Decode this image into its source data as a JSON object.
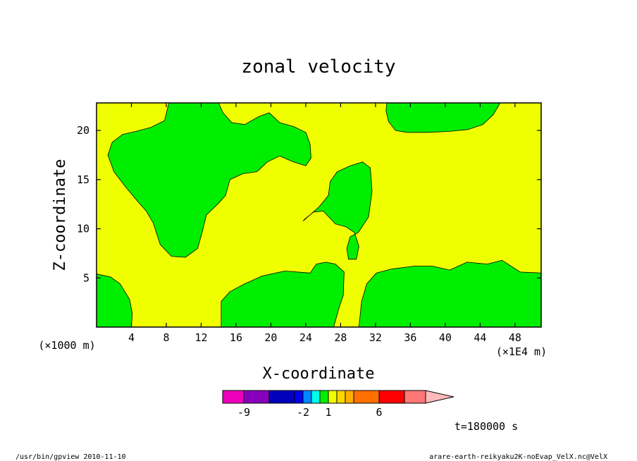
{
  "chart_data": {
    "type": "contour",
    "title": "zonal velocity",
    "xlabel": "X-coordinate",
    "ylabel": "Z-coordinate",
    "x_units_note": "(×1E4 m)",
    "y_units_note": "(×1000 m)",
    "x_ticks": [
      4,
      8,
      12,
      16,
      20,
      24,
      28,
      32,
      36,
      40,
      44,
      48
    ],
    "y_ticks": [
      5,
      10,
      15,
      20
    ],
    "xlim": [
      0,
      51
    ],
    "ylim": [
      0,
      22.8
    ],
    "background_level_color": "#f0ff00",
    "region_color": "#00ee00",
    "regions": [
      {
        "name": "upper-left",
        "points": [
          [
            1.3,
            17.5
          ],
          [
            1.8,
            18.8
          ],
          [
            3,
            19.6
          ],
          [
            4.5,
            19.9
          ],
          [
            6.2,
            20.3
          ],
          [
            7.8,
            21
          ],
          [
            8.3,
            22.8
          ],
          [
            14.0,
            22.8
          ],
          [
            14.5,
            21.8
          ],
          [
            15.5,
            20.8
          ],
          [
            17,
            20.6
          ],
          [
            18.6,
            21.4
          ],
          [
            19.8,
            21.8
          ],
          [
            21,
            20.8
          ],
          [
            22.6,
            20.4
          ],
          [
            24,
            19.8
          ],
          [
            24.5,
            18.6
          ],
          [
            24.6,
            17.2
          ],
          [
            24,
            16.4
          ],
          [
            22.6,
            16.8
          ],
          [
            21,
            17.4
          ],
          [
            19.6,
            16.8
          ],
          [
            18.4,
            15.8
          ],
          [
            16.8,
            15.6
          ],
          [
            15.3,
            15
          ],
          [
            14.8,
            13.4
          ],
          [
            14,
            12.6
          ],
          [
            12.6,
            11.4
          ],
          [
            12.1,
            9.6
          ],
          [
            11.6,
            8
          ],
          [
            10.2,
            7.1
          ],
          [
            8.6,
            7.2
          ],
          [
            7.3,
            8.4
          ],
          [
            6.5,
            10.6
          ],
          [
            5.7,
            11.8
          ],
          [
            4.7,
            12.8
          ],
          [
            3.3,
            14.3
          ],
          [
            2,
            15.8
          ],
          [
            1.3,
            17.5
          ]
        ]
      },
      {
        "name": "upper-right",
        "points": [
          [
            33.3,
            22.8
          ],
          [
            46.3,
            22.8
          ],
          [
            45.5,
            21.6
          ],
          [
            44.3,
            20.6
          ],
          [
            42.6,
            20.1
          ],
          [
            40.5,
            19.9
          ],
          [
            38,
            19.8
          ],
          [
            35.6,
            19.8
          ],
          [
            34.3,
            20
          ],
          [
            33.5,
            20.9
          ],
          [
            33.2,
            22
          ]
        ]
      },
      {
        "name": "middle-blob",
        "points": [
          [
            23.7,
            10.8
          ],
          [
            25.5,
            12.2
          ],
          [
            26.6,
            13.4
          ],
          [
            26.8,
            14.8
          ],
          [
            27.6,
            15.8
          ],
          [
            29.1,
            16.4
          ],
          [
            30.5,
            16.8
          ],
          [
            31.4,
            16.2
          ],
          [
            31.6,
            13.8
          ],
          [
            31.2,
            11.2
          ],
          [
            30,
            9.6
          ],
          [
            29.1,
            9.2
          ],
          [
            28.7,
            8
          ],
          [
            28.9,
            6.9
          ],
          [
            29.8,
            6.9
          ],
          [
            30.1,
            8.2
          ],
          [
            29.6,
            9.6
          ],
          [
            28.6,
            10.2
          ],
          [
            27.4,
            10.5
          ],
          [
            26,
            11.8
          ],
          [
            24.9,
            11.7
          ],
          [
            23.9,
            11
          ]
        ]
      },
      {
        "name": "lower-left",
        "points": [
          [
            0,
            5.4
          ],
          [
            1.6,
            5.1
          ],
          [
            2.7,
            4.4
          ],
          [
            3.8,
            2.8
          ],
          [
            4.1,
            1.4
          ],
          [
            4.0,
            0
          ],
          [
            0,
            0
          ]
        ]
      },
      {
        "name": "lower-middle",
        "points": [
          [
            14.3,
            0
          ],
          [
            14.3,
            2.6
          ],
          [
            15.3,
            3.6
          ],
          [
            17,
            4.4
          ],
          [
            19,
            5.2
          ],
          [
            21.6,
            5.7
          ],
          [
            24.5,
            5.5
          ],
          [
            25.2,
            6.4
          ],
          [
            26.3,
            6.6
          ],
          [
            27.4,
            6.4
          ],
          [
            28.4,
            5.6
          ],
          [
            28.3,
            3.2
          ],
          [
            27.9,
            2.2
          ],
          [
            27.2,
            0
          ]
        ]
      },
      {
        "name": "lower-right",
        "points": [
          [
            30.1,
            0
          ],
          [
            30.4,
            2.6
          ],
          [
            31,
            4.4
          ],
          [
            32.1,
            5.5
          ],
          [
            33.8,
            5.9
          ],
          [
            36.5,
            6.2
          ],
          [
            38.5,
            6.2
          ],
          [
            40.5,
            5.8
          ],
          [
            42.5,
            6.6
          ],
          [
            44.8,
            6.4
          ],
          [
            46.5,
            6.8
          ],
          [
            48.6,
            5.6
          ],
          [
            51,
            5.5
          ],
          [
            51,
            0
          ]
        ]
      }
    ],
    "colorbar": {
      "colors": [
        "#ee00bb",
        "#8800bb",
        "#0000bb",
        "#0000ee",
        "#0088ff",
        "#00ffee",
        "#00ee00",
        "#f0ff00",
        "#ffd700",
        "#ffb000",
        "#ff7000",
        "#ff0000",
        "#ff7777",
        "#ffbbbb"
      ],
      "labels": [
        "-9",
        "-2",
        "1",
        "6"
      ]
    },
    "time_label": "t=180000 s"
  },
  "footer": {
    "left": "/usr/bin/gpview  2010-11-10",
    "right": "arare-earth-reikyaku2K-noEvap_VelX.nc@VelX"
  }
}
